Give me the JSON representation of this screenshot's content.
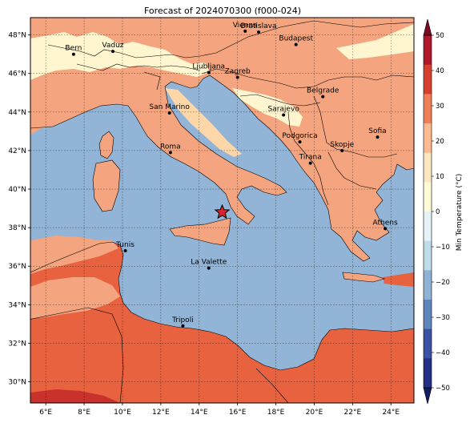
{
  "title": "Forecast of 2024070300 (f000-024)",
  "lat_ticks": [
    "48°N",
    "46°N",
    "44°N",
    "42°N",
    "40°N",
    "38°N",
    "36°N",
    "34°N",
    "32°N",
    "30°N"
  ],
  "lon_ticks": [
    "6°E",
    "8°E",
    "10°E",
    "12°E",
    "14°E",
    "16°E",
    "18°E",
    "20°E",
    "22°E",
    "24°E"
  ],
  "colorbar": {
    "label": "Min Temperature (°C)",
    "ticks": [
      "50",
      "40",
      "30",
      "20",
      "10",
      "0",
      "−10",
      "−20",
      "−30",
      "−40",
      "−50"
    ],
    "colors": [
      "#b0182b",
      "#d7402d",
      "#f07f58",
      "#fdb98f",
      "#fde6c2",
      "#fffbd6",
      "#e5f2f6",
      "#bfdcea",
      "#8fb3d5",
      "#5f86bc",
      "#3a51a4",
      "#262f86"
    ]
  },
  "map_colors": {
    "sea": "#92b4d6",
    "warm": "#f4a47e",
    "hot": "#e8623f",
    "very_hot": "#c9312c",
    "mild": "#fdd7a8",
    "cool": "#fff6cf"
  },
  "cities": [
    {
      "name": "Bern",
      "lon": 7.45,
      "lat": 47.0
    },
    {
      "name": "Vaduz",
      "lon": 9.5,
      "lat": 47.15
    },
    {
      "name": "Vienna",
      "lon": 16.4,
      "lat": 48.2
    },
    {
      "name": "Bratislava",
      "lon": 17.1,
      "lat": 48.15
    },
    {
      "name": "Budapest",
      "lon": 19.05,
      "lat": 47.5
    },
    {
      "name": "Ljubljana",
      "lon": 14.5,
      "lat": 46.05
    },
    {
      "name": "Zagreb",
      "lon": 16.0,
      "lat": 45.8
    },
    {
      "name": "Belgrade",
      "lon": 20.45,
      "lat": 44.8
    },
    {
      "name": "San Marino",
      "lon": 12.45,
      "lat": 43.95
    },
    {
      "name": "Sarajevo",
      "lon": 18.4,
      "lat": 43.85
    },
    {
      "name": "Sofia",
      "lon": 23.3,
      "lat": 42.7
    },
    {
      "name": "Podgorica",
      "lon": 19.25,
      "lat": 42.45
    },
    {
      "name": "Skopje",
      "lon": 21.45,
      "lat": 42.0
    },
    {
      "name": "Roma",
      "lon": 12.5,
      "lat": 41.9
    },
    {
      "name": "Tirana",
      "lon": 19.8,
      "lat": 41.35
    },
    {
      "name": "Athens",
      "lon": 23.7,
      "lat": 37.95
    },
    {
      "name": "Tunis",
      "lon": 10.15,
      "lat": 36.8
    },
    {
      "name": "La Valette",
      "lon": 14.5,
      "lat": 35.9
    },
    {
      "name": "Tripoli",
      "lon": 13.15,
      "lat": 32.9
    }
  ],
  "marker": {
    "name": "star-marker",
    "lon": 15.2,
    "lat": 38.8
  }
}
